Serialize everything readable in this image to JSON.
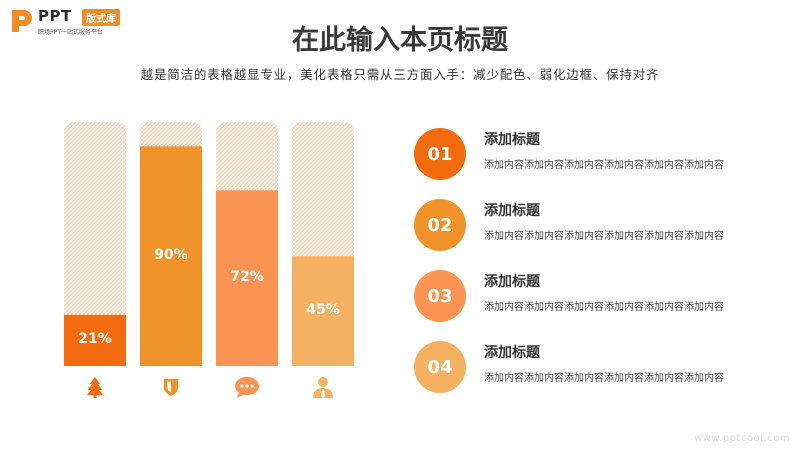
{
  "logo": {
    "brand": "PPT",
    "badge": "版式库",
    "tagline": "职场PPT一站式服务平台"
  },
  "page": {
    "title": "在此输入本页标题",
    "subtitle": "越是简洁的表格越显专业，美化表格只需从三方面入手：减少配色、弱化边框、保持对齐"
  },
  "chart_data": {
    "type": "bar",
    "categories": [
      "01",
      "02",
      "03",
      "04"
    ],
    "values": [
      21,
      90,
      72,
      45
    ],
    "labels": [
      "21%",
      "90%",
      "72%",
      "45%"
    ],
    "ylim": [
      0,
      100
    ],
    "colors": [
      "#f26b0f",
      "#f0922a",
      "#fb9452",
      "#f5b062"
    ],
    "track_pattern_color": "#f2c29a",
    "icons": [
      "tree-icon",
      "shield-icon",
      "chat-bubble-icon",
      "user-tie-icon"
    ]
  },
  "items": [
    {
      "number": "01",
      "title": "添加标题",
      "text": "添加内容添加内容添加内容添加内容添加内容添加内容",
      "color": "#f26b0f"
    },
    {
      "number": "02",
      "title": "添加标题",
      "text": "添加内容添加内容添加内容添加内容添加内容添加内容",
      "color": "#f0922a"
    },
    {
      "number": "03",
      "title": "添加标题",
      "text": "添加内容添加内容添加内容添加内容添加内容添加内容",
      "color": "#fb9452"
    },
    {
      "number": "04",
      "title": "添加标题",
      "text": "添加内容添加内容添加内容添加内容添加内容添加内容",
      "color": "#f5b062"
    }
  ],
  "watermark": "www.pptcool.com"
}
